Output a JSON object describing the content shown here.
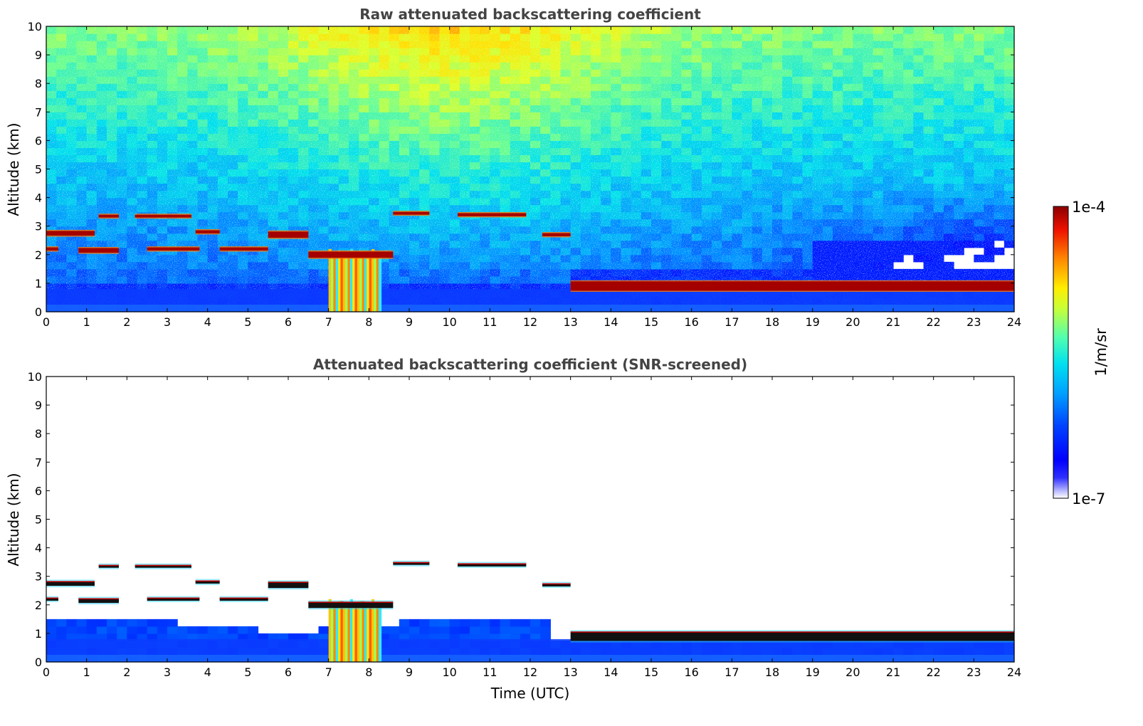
{
  "chart_data": [
    {
      "type": "heatmap",
      "title": "Raw attenuated backscattering coefficient",
      "xlabel": "",
      "ylabel": "Altitude (km)",
      "xlim": [
        0,
        24
      ],
      "ylim": [
        0,
        10
      ],
      "x_ticks": [
        "0",
        "1",
        "2",
        "3",
        "4",
        "5",
        "6",
        "7",
        "8",
        "9",
        "10",
        "11",
        "12",
        "13",
        "14",
        "15",
        "16",
        "17",
        "18",
        "19",
        "20",
        "21",
        "22",
        "23",
        "24"
      ],
      "y_ticks": [
        "0",
        "1",
        "2",
        "3",
        "4",
        "5",
        "6",
        "7",
        "8",
        "9",
        "10"
      ],
      "screened": false,
      "features": {
        "cloud_layers": [
          {
            "time": [
              0.0,
              1.2
            ],
            "altitude_km": [
              2.6,
              2.9
            ]
          },
          {
            "time": [
              0.0,
              0.3
            ],
            "altitude_km": [
              2.1,
              2.3
            ]
          },
          {
            "time": [
              0.8,
              1.8
            ],
            "altitude_km": [
              2.0,
              2.3
            ]
          },
          {
            "time": [
              1.3,
              1.8
            ],
            "altitude_km": [
              3.3,
              3.4
            ]
          },
          {
            "time": [
              2.2,
              3.6
            ],
            "altitude_km": [
              3.3,
              3.4
            ]
          },
          {
            "time": [
              2.5,
              3.8
            ],
            "altitude_km": [
              2.1,
              2.3
            ]
          },
          {
            "time": [
              3.7,
              4.3
            ],
            "altitude_km": [
              2.7,
              2.9
            ]
          },
          {
            "time": [
              4.3,
              5.5
            ],
            "altitude_km": [
              2.1,
              2.3
            ]
          },
          {
            "time": [
              5.5,
              6.5
            ],
            "altitude_km": [
              2.5,
              2.9
            ]
          },
          {
            "time": [
              6.5,
              8.6
            ],
            "altitude_km": [
              1.8,
              2.2
            ]
          },
          {
            "time": [
              8.6,
              9.5
            ],
            "altitude_km": [
              3.4,
              3.5
            ]
          },
          {
            "time": [
              10.2,
              11.9
            ],
            "altitude_km": [
              3.3,
              3.5
            ]
          },
          {
            "time": [
              12.3,
              13.0
            ],
            "altitude_km": [
              2.6,
              2.8
            ]
          },
          {
            "time": [
              13.0,
              24.0
            ],
            "altitude_km": [
              0.6,
              1.2
            ]
          }
        ],
        "aerosol_plume": {
          "time": [
            7.0,
            8.3
          ],
          "altitude_km": [
            0.0,
            2.2
          ]
        },
        "boundary_layer_top_km": 0.8
      }
    },
    {
      "type": "heatmap",
      "title": "Attenuated backscattering coefficient (SNR-screened)",
      "xlabel": "Time (UTC)",
      "ylabel": "Altitude (km)",
      "xlim": [
        0,
        24
      ],
      "ylim": [
        0,
        10
      ],
      "x_ticks": [
        "0",
        "1",
        "2",
        "3",
        "4",
        "5",
        "6",
        "7",
        "8",
        "9",
        "10",
        "11",
        "12",
        "13",
        "14",
        "15",
        "16",
        "17",
        "18",
        "19",
        "20",
        "21",
        "22",
        "23",
        "24"
      ],
      "y_ticks": [
        "0",
        "1",
        "2",
        "3",
        "4",
        "5",
        "6",
        "7",
        "8",
        "9",
        "10"
      ],
      "screened": true,
      "features": {
        "cloud_layers": [
          {
            "time": [
              0.0,
              1.2
            ],
            "altitude_km": [
              2.6,
              2.9
            ]
          },
          {
            "time": [
              0.0,
              0.3
            ],
            "altitude_km": [
              2.1,
              2.3
            ]
          },
          {
            "time": [
              0.8,
              1.8
            ],
            "altitude_km": [
              2.0,
              2.3
            ]
          },
          {
            "time": [
              1.3,
              1.8
            ],
            "altitude_km": [
              3.3,
              3.4
            ]
          },
          {
            "time": [
              2.2,
              3.6
            ],
            "altitude_km": [
              3.3,
              3.4
            ]
          },
          {
            "time": [
              2.5,
              3.8
            ],
            "altitude_km": [
              2.1,
              2.3
            ]
          },
          {
            "time": [
              3.7,
              4.3
            ],
            "altitude_km": [
              2.7,
              2.9
            ]
          },
          {
            "time": [
              4.3,
              5.5
            ],
            "altitude_km": [
              2.1,
              2.3
            ]
          },
          {
            "time": [
              5.5,
              6.5
            ],
            "altitude_km": [
              2.5,
              2.9
            ]
          },
          {
            "time": [
              6.5,
              8.6
            ],
            "altitude_km": [
              1.8,
              2.2
            ]
          },
          {
            "time": [
              8.6,
              9.5
            ],
            "altitude_km": [
              3.4,
              3.5
            ]
          },
          {
            "time": [
              10.2,
              11.9
            ],
            "altitude_km": [
              3.3,
              3.5
            ]
          },
          {
            "time": [
              12.3,
              13.0
            ],
            "altitude_km": [
              2.6,
              2.8
            ]
          },
          {
            "time": [
              13.0,
              24.0
            ],
            "altitude_km": [
              0.6,
              1.2
            ]
          }
        ],
        "aerosol_plume": {
          "time": [
            7.0,
            8.3
          ],
          "altitude_km": [
            0.0,
            2.2
          ]
        },
        "boundary_layer_top_km": 0.8
      }
    }
  ],
  "colorbar": {
    "label": "1/m/sr",
    "max_label": "1e-4",
    "min_label": "1e-7",
    "scale": "log",
    "range": [
      1e-07,
      0.0001
    ],
    "colors": [
      "#ffffff",
      "#0000ff",
      "#0077ff",
      "#00c8ff",
      "#66ffcc",
      "#ccff33",
      "#ffe600",
      "#ff8800",
      "#ff2200",
      "#8b0000"
    ]
  }
}
